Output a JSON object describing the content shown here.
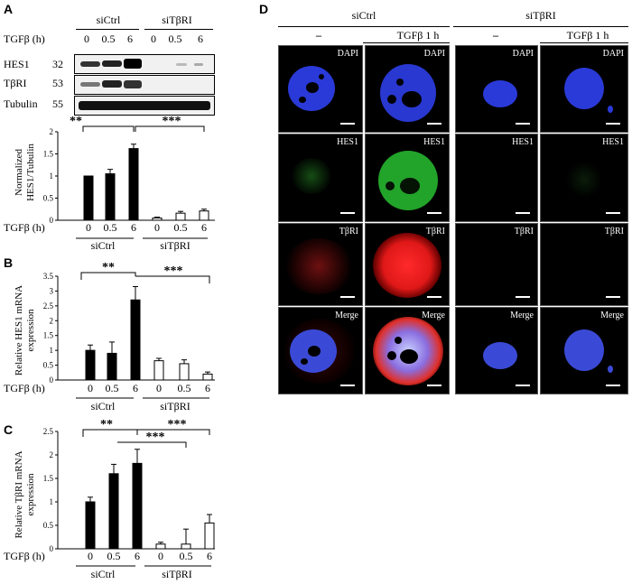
{
  "panels": {
    "A": "A",
    "B": "B",
    "C": "C",
    "D": "D"
  },
  "treatment_label": "TGFβ (h)",
  "groups": [
    "siCtrl",
    "siTβRI"
  ],
  "timepoints": [
    "0",
    "0.5",
    "6"
  ],
  "blot": {
    "rows": [
      {
        "protein": "HES1",
        "mw": "32"
      },
      {
        "protein": "TβRI",
        "mw": "53"
      },
      {
        "protein": "Tubulin",
        "mw": "55"
      }
    ]
  },
  "significance": {
    "double": "**",
    "triple": "***"
  },
  "chart_data": [
    {
      "type": "bar",
      "panel": "A",
      "ylabel_lines": [
        "Normalized",
        "HES1/Tubulin"
      ],
      "ylim": [
        0,
        2
      ],
      "yticks": [
        "0",
        "0.5",
        "1",
        "1.5",
        "2"
      ],
      "categories": [
        "0",
        "0.5",
        "6",
        "0",
        "0.5",
        "6"
      ],
      "groups": [
        "siCtrl",
        "siTβRI"
      ],
      "values": [
        1.0,
        1.05,
        1.62,
        0.05,
        0.16,
        0.21
      ],
      "errors": [
        0.0,
        0.1,
        0.1,
        0.02,
        0.04,
        0.04
      ]
    },
    {
      "type": "bar",
      "panel": "B",
      "ylabel_lines": [
        "Relative HES1 mRNA",
        "expression"
      ],
      "ylim": [
        0,
        3.5
      ],
      "yticks": [
        "0",
        "0.5",
        "1",
        "1.5",
        "2",
        "2.5",
        "3",
        "3.5"
      ],
      "categories": [
        "0",
        "0.5",
        "6",
        "0",
        "0.5",
        "6"
      ],
      "groups": [
        "siCtrl",
        "siTβRI"
      ],
      "values": [
        1.0,
        0.9,
        2.7,
        0.65,
        0.55,
        0.2
      ],
      "errors": [
        0.18,
        0.38,
        0.45,
        0.08,
        0.13,
        0.07
      ]
    },
    {
      "type": "bar",
      "panel": "C",
      "ylabel_lines": [
        "Relative TβRI mRNA",
        "expression"
      ],
      "ylim": [
        0,
        2.5
      ],
      "yticks": [
        "0",
        "0.5",
        "1",
        "1.5",
        "2",
        "2.5"
      ],
      "categories": [
        "0",
        "0.5",
        "6",
        "0",
        "0.5",
        "6"
      ],
      "groups": [
        "siCtrl",
        "siTβRI"
      ],
      "values": [
        1.0,
        1.6,
        1.82,
        0.1,
        0.1,
        0.55
      ],
      "errors": [
        0.1,
        0.2,
        0.3,
        0.04,
        0.32,
        0.18
      ]
    }
  ],
  "microscopy": {
    "group_headers": [
      "siCtrl",
      "siTβRI"
    ],
    "column_headers": [
      "–",
      "TGFβ 1 h",
      "–",
      "TGFβ 1 h"
    ],
    "row_labels": [
      "DAPI",
      "HES1",
      "TβRI",
      "Merge"
    ]
  }
}
